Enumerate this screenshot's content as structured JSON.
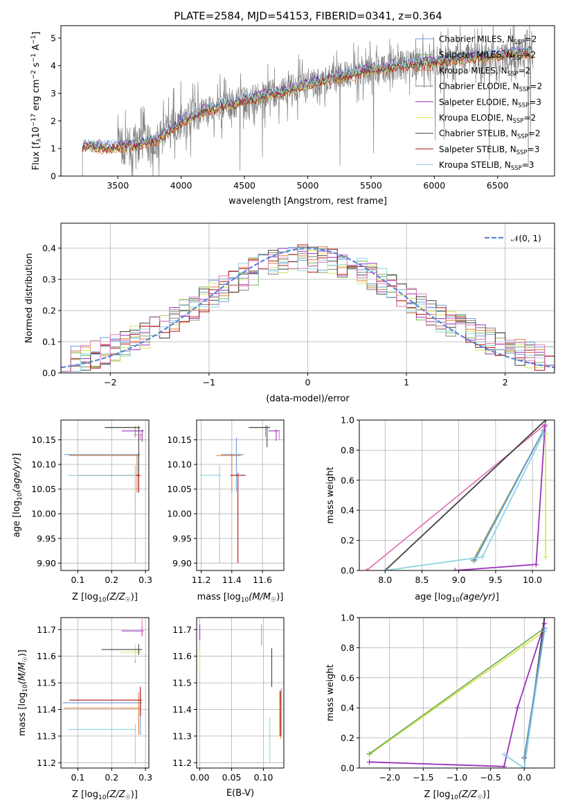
{
  "figure": {
    "title": "PLATE=2584, MJD=54153, FIBERID=0341, z=0.364"
  },
  "colors": {
    "chabrier_miles": "#6a9bd8",
    "salpeter_miles": "#7ab05a",
    "kroupa_miles": "#e07b39",
    "chabrier_elodie": "#7f7f7f",
    "salpeter_elodie": "#9a2fb8",
    "kroupa_elodie": "#d4e85a",
    "chabrier_stelib": "#404040",
    "salpeter_stelib": "#b01010",
    "kroupa_stelib": "#8fd3e0",
    "pink": "#e07aba",
    "normal_curve": "#5b86d6"
  },
  "chart_data": [
    {
      "id": "spectrum",
      "type": "line",
      "xlabel": "wavelength [Angstrom, rest frame]",
      "ylabel": "Flux [f_λ 10^-17 erg cm^-2 s^-1 A^-1]",
      "xlim": [
        3050,
        6950
      ],
      "ylim": [
        0,
        5.45
      ],
      "xticks": [
        3500,
        4000,
        4500,
        5000,
        5500,
        6000,
        6500
      ],
      "yticks": [
        0,
        1,
        2,
        3,
        4,
        5
      ],
      "grid": false,
      "legend_position": "top-right",
      "legend": [
        {
          "model": "Chabrier MILES",
          "nssp": "2",
          "color_key": "chabrier_miles"
        },
        {
          "model": "Salpeter MILES",
          "nssp": "2",
          "color_key": "salpeter_miles"
        },
        {
          "model": "Kroupa MILES",
          "nssp": "2",
          "color_key": "kroupa_miles"
        },
        {
          "model": "Chabrier ELODIE",
          "nssp": "2",
          "color_key": "chabrier_elodie"
        },
        {
          "model": "Salpeter ELODIE",
          "nssp": "3",
          "color_key": "salpeter_elodie"
        },
        {
          "model": "Kroupa ELODIE",
          "nssp": "2",
          "color_key": "kroupa_elodie"
        },
        {
          "model": "Chabrier STELIB",
          "nssp": "2",
          "color_key": "chabrier_stelib"
        },
        {
          "model": "Salpeter STELIB",
          "nssp": "3",
          "color_key": "salpeter_stelib"
        },
        {
          "model": "Kroupa STELIB",
          "nssp": "3",
          "color_key": "kroupa_stelib"
        }
      ],
      "continuum": [
        [
          3220,
          1.12
        ],
        [
          3400,
          1.05
        ],
        [
          3600,
          1.1
        ],
        [
          3800,
          1.3
        ],
        [
          4000,
          2.0
        ],
        [
          4200,
          2.4
        ],
        [
          4500,
          2.75
        ],
        [
          4800,
          3.05
        ],
        [
          5000,
          3.3
        ],
        [
          5200,
          3.55
        ],
        [
          5500,
          3.85
        ],
        [
          5800,
          4.05
        ],
        [
          6000,
          4.15
        ],
        [
          6300,
          4.3
        ],
        [
          6750,
          4.5
        ]
      ]
    },
    {
      "id": "residuals",
      "type": "histogram",
      "xlabel": "(data-model)/error",
      "ylabel": "Normed distribution",
      "xlim": [
        -2.5,
        2.5
      ],
      "ylim": [
        0,
        0.48
      ],
      "xticks": [
        -2,
        -1,
        0,
        1,
        2
      ],
      "yticks": [
        0.0,
        0.1,
        0.2,
        0.3,
        0.4
      ],
      "grid": true,
      "legend_position": "top-right",
      "legend_label": "𝒩(0, 1)",
      "bin_width": 0.1
    },
    {
      "id": "age_vs_Z",
      "type": "scatter",
      "xlabel": "Z [log10(Z/Z☉)]",
      "ylabel": "age  [log10(age/yr)]",
      "xlim": [
        0.05,
        0.31
      ],
      "ylim": [
        9.885,
        10.19
      ],
      "xticks": [
        0.1,
        0.2,
        0.3
      ],
      "yticks": [
        9.9,
        9.95,
        10.0,
        10.05,
        10.1,
        10.15
      ],
      "grid": true,
      "points": [
        {
          "key": "chabrier_miles",
          "x": 0.28,
          "y": 10.12,
          "xerr": [
            0.22,
            0.005
          ],
          "yerr": [
            0.075,
            0.005
          ]
        },
        {
          "key": "salpeter_miles",
          "x": 0.27,
          "y": 10.175,
          "xerr": [
            0.09,
            0.005
          ],
          "yerr": [
            0.02,
            0.003
          ]
        },
        {
          "key": "kroupa_miles",
          "x": 0.275,
          "y": 10.118,
          "xerr": [
            0.2,
            0.005
          ],
          "yerr": [
            0.075,
            0.003
          ]
        },
        {
          "key": "chabrier_elodie",
          "x": 0.27,
          "y": 10.078,
          "xerr": [
            0.0,
            0.003
          ],
          "yerr": [
            0.178,
            0.02
          ]
        },
        {
          "key": "salpeter_elodie",
          "x": 0.29,
          "y": 10.168,
          "xerr": [
            0.06,
            0.005
          ],
          "yerr": [
            0.022,
            0.003
          ]
        },
        {
          "key": "kroupa_elodie",
          "x": 0.27,
          "y": 10.078,
          "xerr": [
            0.0,
            0.003
          ],
          "yerr": [
            0.05,
            0.01
          ]
        },
        {
          "key": "chabrier_stelib",
          "x": 0.28,
          "y": 10.175,
          "xerr": [
            0.1,
            0.005
          ],
          "yerr": [
            0.1,
            0.003
          ]
        },
        {
          "key": "salpeter_stelib",
          "x": 0.28,
          "y": 10.078,
          "xerr": [
            0.18,
            0.005
          ],
          "yerr": [
            0.035,
            0.003
          ]
        },
        {
          "key": "kroupa_stelib",
          "x": 0.27,
          "y": 10.078,
          "xerr": [
            0.2,
            0.003
          ],
          "yerr": [
            0.178,
            0.02
          ]
        },
        {
          "key": "pink",
          "x": 0.285,
          "y": 10.16,
          "xerr": [
            0.02,
            0.003
          ],
          "yerr": [
            0.01,
            0.003
          ]
        }
      ]
    },
    {
      "id": "age_vs_mass",
      "type": "scatter",
      "xlabel": "mass [log10(M/M☉)]",
      "ylabel": "",
      "xlim": [
        11.17,
        11.74
      ],
      "ylim": [
        9.885,
        10.19
      ],
      "xticks": [
        11.2,
        11.4,
        11.6
      ],
      "yticks": [
        9.9,
        9.95,
        10.0,
        10.05,
        10.1,
        10.15
      ],
      "grid": true,
      "points": [
        {
          "key": "chabrier_miles",
          "x": 11.43,
          "y": 10.12,
          "xerr": [
            0.1,
            0.05
          ],
          "yerr": [
            0.075,
            0.035
          ]
        },
        {
          "key": "salpeter_miles",
          "x": 11.62,
          "y": 10.175,
          "xerr": [
            0.1,
            0.03
          ],
          "yerr": [
            0.02,
            0.005
          ]
        },
        {
          "key": "kroupa_miles",
          "x": 11.4,
          "y": 10.118,
          "xerr": [
            0.1,
            0.06
          ],
          "yerr": [
            0.075,
            0.005
          ]
        },
        {
          "key": "chabrier_elodie",
          "x": 11.33,
          "y": 10.078,
          "xerr": [
            0.0,
            0.0
          ],
          "yerr": [
            0.0,
            0.0
          ]
        },
        {
          "key": "salpeter_elodie",
          "x": 11.69,
          "y": 10.168,
          "xerr": [
            0.05,
            0.02
          ],
          "yerr": [
            0.02,
            0.003
          ]
        },
        {
          "key": "kroupa_elodie",
          "x": 11.62,
          "y": 10.175,
          "xerr": [
            0.0,
            0.0
          ],
          "yerr": [
            0.0,
            0.0
          ]
        },
        {
          "key": "chabrier_stelib",
          "x": 11.63,
          "y": 10.175,
          "xerr": [
            0.12,
            0.02
          ],
          "yerr": [
            0.04,
            0.003
          ]
        },
        {
          "key": "salpeter_stelib",
          "x": 11.44,
          "y": 10.078,
          "xerr": [
            0.05,
            0.05
          ],
          "yerr": [
            0.178,
            0.005
          ]
        },
        {
          "key": "kroupa_stelib",
          "x": 11.32,
          "y": 10.078,
          "xerr": [
            0.13,
            0.01
          ],
          "yerr": [
            0.178,
            0.02
          ]
        },
        {
          "key": "pink",
          "x": 11.71,
          "y": 10.16,
          "xerr": [
            0.0,
            0.0
          ],
          "yerr": [
            0.01,
            0.01
          ]
        }
      ]
    },
    {
      "id": "weight_vs_age",
      "type": "line",
      "xlabel": "age  [log10(age/yr)]",
      "ylabel": "mass weight",
      "xlim": [
        7.65,
        10.3
      ],
      "ylim": [
        0,
        1.0
      ],
      "xticks": [
        8.0,
        8.5,
        9.0,
        9.5,
        10.0
      ],
      "yticks": [
        0.0,
        0.2,
        0.4,
        0.6,
        0.8,
        1.0
      ],
      "grid": true,
      "series": [
        {
          "key": "pink",
          "points": [
            [
              7.75,
              0.0
            ],
            [
              10.17,
              0.97
            ]
          ]
        },
        {
          "key": "chabrier_stelib",
          "points": [
            [
              8.0,
              0.0
            ],
            [
              10.18,
              1.0
            ]
          ]
        },
        {
          "key": "kroupa_miles",
          "points": [
            [
              9.2,
              0.07
            ],
            [
              10.15,
              0.93
            ]
          ]
        },
        {
          "key": "salpeter_miles",
          "points": [
            [
              9.2,
              0.065
            ],
            [
              10.15,
              0.93
            ]
          ]
        },
        {
          "key": "chabrier_miles",
          "points": [
            [
              9.22,
              0.07
            ],
            [
              10.15,
              0.93
            ]
          ]
        },
        {
          "key": "salpeter_elodie",
          "points": [
            [
              8.95,
              0.0
            ],
            [
              10.05,
              0.04
            ],
            [
              10.17,
              0.96
            ]
          ]
        },
        {
          "key": "kroupa_elodie",
          "points": [
            [
              10.18,
              0.09
            ],
            [
              10.18,
              0.91
            ]
          ]
        },
        {
          "key": "kroupa_stelib",
          "points": [
            [
              8.0,
              0.0
            ],
            [
              9.32,
              0.09
            ],
            [
              10.15,
              0.91
            ]
          ]
        }
      ]
    },
    {
      "id": "mass_vs_Z",
      "type": "scatter",
      "xlabel": "Z [log10(Z/Z☉)]",
      "ylabel": "mass [log10(M/M☉)]",
      "xlim": [
        0.05,
        0.31
      ],
      "ylim": [
        11.18,
        11.745
      ],
      "xticks": [
        0.1,
        0.2,
        0.3
      ],
      "yticks": [
        11.2,
        11.3,
        11.4,
        11.5,
        11.6,
        11.7
      ],
      "grid": true,
      "points": [
        {
          "key": "chabrier_miles",
          "x": 0.285,
          "y": 11.425,
          "xerr": [
            0.23,
            0.005
          ],
          "yerr": [
            0.12,
            0.05
          ]
        },
        {
          "key": "salpeter_miles",
          "x": 0.27,
          "y": 11.615,
          "xerr": [
            0.0,
            0.0
          ],
          "yerr": [
            0.04,
            0.03
          ]
        },
        {
          "key": "kroupa_miles",
          "x": 0.28,
          "y": 11.405,
          "xerr": [
            0.22,
            0.005
          ],
          "yerr": [
            0.1,
            0.06
          ]
        },
        {
          "key": "chabrier_elodie",
          "x": 0.27,
          "y": 11.325,
          "xerr": [
            0.0,
            0.0
          ],
          "yerr": [
            0.0,
            0.0
          ]
        },
        {
          "key": "salpeter_elodie",
          "x": 0.29,
          "y": 11.695,
          "xerr": [
            0.06,
            0.005
          ],
          "yerr": [
            0.02,
            0.02
          ]
        },
        {
          "key": "kroupa_elodie",
          "x": 0.27,
          "y": 11.615,
          "xerr": [
            0.045,
            0.02
          ],
          "yerr": [
            0.03,
            0.03
          ]
        },
        {
          "key": "chabrier_stelib",
          "x": 0.28,
          "y": 11.625,
          "xerr": [
            0.11,
            0.01
          ],
          "yerr": [
            0.02,
            0.02
          ]
        },
        {
          "key": "salpeter_stelib",
          "x": 0.285,
          "y": 11.435,
          "xerr": [
            0.21,
            0.005
          ],
          "yerr": [
            0.06,
            0.05
          ]
        },
        {
          "key": "kroupa_stelib",
          "x": 0.27,
          "y": 11.325,
          "xerr": [
            0.2,
            0.0
          ],
          "yerr": [
            0.13,
            0.02
          ]
        },
        {
          "key": "pink",
          "x": 0.29,
          "y": 11.7,
          "xerr": [
            0.0,
            0.0
          ],
          "yerr": [
            0.02,
            0.04
          ]
        }
      ]
    },
    {
      "id": "mass_vs_ebv",
      "type": "scatter",
      "xlabel": "E(B-V)",
      "ylabel": "",
      "xlim": [
        -0.005,
        0.132
      ],
      "ylim": [
        11.18,
        11.745
      ],
      "xticks": [
        0.0,
        0.05,
        0.1
      ],
      "xticklabels": [
        "0.00",
        "0.05",
        "0.10"
      ],
      "yticks": [
        11.2,
        11.3,
        11.4,
        11.5,
        11.6,
        11.7
      ],
      "grid": true,
      "points": [
        {
          "key": "salpeter_elodie",
          "x": 0.0,
          "y": 11.69,
          "yerr": [
            0.03,
            0.03
          ]
        },
        {
          "key": "kroupa_elodie",
          "x": 0.0,
          "y": 11.58,
          "yerr": [
            0.05,
            0.04
          ]
        },
        {
          "key": "pink",
          "x": 0.097,
          "y": 11.68,
          "yerr": [
            0.04,
            0.04
          ]
        },
        {
          "key": "chabrier_stelib",
          "x": 0.113,
          "y": 11.555,
          "yerr": [
            0.07,
            0.075
          ]
        },
        {
          "key": "kroupa_stelib",
          "x": 0.11,
          "y": 11.27,
          "yerr": [
            0.07,
            0.1
          ]
        },
        {
          "key": "salpeter_stelib",
          "x": 0.126,
          "y": 11.39,
          "yerr": [
            0.09,
            0.08
          ]
        },
        {
          "key": "kroupa_miles",
          "x": 0.127,
          "y": 11.37,
          "yerr": [
            0.08,
            0.1
          ]
        },
        {
          "key": "chabrier_miles",
          "x": 0.128,
          "y": 11.38,
          "yerr": [
            0.08,
            0.1
          ]
        }
      ]
    },
    {
      "id": "weight_vs_Z",
      "type": "line",
      "xlabel": "Z [log10(Z/Z☉)]",
      "ylabel": "mass weight",
      "xlim": [
        -2.45,
        0.45
      ],
      "ylim": [
        0,
        1.0
      ],
      "xticks": [
        -2.0,
        -1.5,
        -1.0,
        -0.5,
        0.0
      ],
      "yticks": [
        0.0,
        0.2,
        0.4,
        0.6,
        0.8,
        1.0
      ],
      "grid": true,
      "series": [
        {
          "key": "kroupa_elodie",
          "points": [
            [
              -2.3,
              0.09
            ],
            [
              0.3,
              0.91
            ]
          ]
        },
        {
          "key": "salpeter_miles",
          "points": [
            [
              -2.3,
              0.095
            ],
            [
              0.3,
              0.93
            ]
          ]
        },
        {
          "key": "salpeter_elodie",
          "points": [
            [
              -2.3,
              0.04
            ],
            [
              -0.3,
              0.01
            ],
            [
              -0.1,
              0.4
            ],
            [
              0.3,
              0.96
            ]
          ]
        },
        {
          "key": "chabrier_stelib",
          "points": [
            [
              0.0,
              0.0
            ],
            [
              0.3,
              1.0
            ]
          ]
        },
        {
          "key": "kroupa_stelib",
          "points": [
            [
              -0.3,
              0.09
            ],
            [
              0.0,
              0.0
            ],
            [
              0.3,
              0.91
            ]
          ]
        },
        {
          "key": "kroupa_miles",
          "points": [
            [
              0.0,
              0.07
            ],
            [
              0.3,
              0.93
            ]
          ]
        },
        {
          "key": "chabrier_miles",
          "points": [
            [
              0.0,
              0.065
            ],
            [
              0.3,
              0.93
            ]
          ]
        }
      ]
    }
  ]
}
